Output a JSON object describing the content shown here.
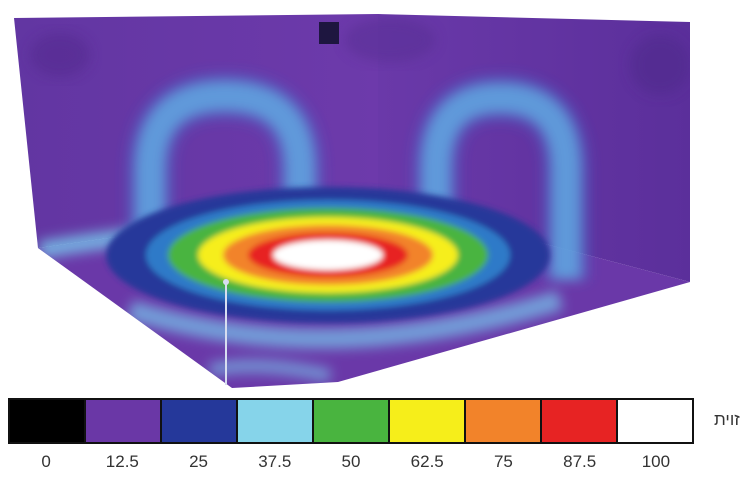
{
  "chart_data": {
    "type": "heatmap",
    "title": "",
    "legend": {
      "unit": "זוית",
      "levels": [
        {
          "value": 0,
          "label": "0",
          "color": "#000000"
        },
        {
          "value": 12.5,
          "label": "12.5",
          "color": "#6a37a6"
        },
        {
          "value": 25,
          "label": "25",
          "color": "#25389a"
        },
        {
          "value": 37.5,
          "label": "37.5",
          "color": "#86d4ea"
        },
        {
          "value": 50,
          "label": "50",
          "color": "#49b43f"
        },
        {
          "value": 62.5,
          "label": "62.5",
          "color": "#f6ee1a"
        },
        {
          "value": 75,
          "label": "75",
          "color": "#f2832a"
        },
        {
          "value": 87.5,
          "label": "87.5",
          "color": "#e72323"
        },
        {
          "value": 100,
          "label": "100",
          "color": "#ffffff"
        }
      ]
    },
    "surfaces": {
      "background_level": 12.5,
      "floor_hotspot": {
        "peak": 100,
        "rings": [
          87.5,
          75,
          62.5,
          50,
          25
        ]
      },
      "wall_arches": [
        {
          "wall": "back-left",
          "level": 37.5
        },
        {
          "wall": "back-right",
          "level": 37.5
        }
      ]
    }
  }
}
